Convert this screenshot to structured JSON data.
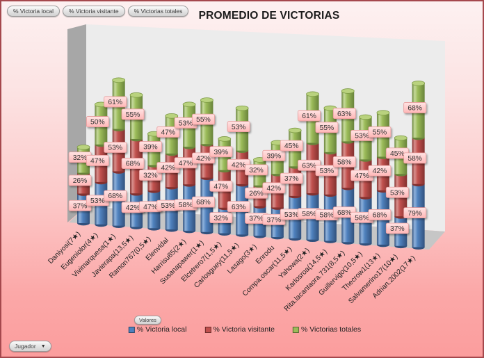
{
  "header": {
    "filter_buttons": [
      {
        "label": "% Victoria local"
      },
      {
        "label": "% Victoria visitante"
      },
      {
        "label": "% Victorias totales"
      }
    ],
    "title": "PROMEDIO DE VICTORIAS"
  },
  "footer": {
    "valores_button": "Valores",
    "jugador_dropdown": "Jugador",
    "dropdown_arrow": "▼"
  },
  "chart_data": {
    "type": "bar",
    "variant": "3d-stacked-cylinders",
    "title": "PROMEDIO DE VICTORIAS",
    "value_suffix": "%",
    "data_labels": true,
    "legend_position": "bottom",
    "axes_visible": false,
    "categories": [
      "Daniyosi(7★)",
      "Eugeniolor(4★)",
      "Vivimarquesa(1★)",
      "Javierapa(13,5★)",
      "Ramon767(0,5★)",
      "Elenvidal",
      "Harrisu85(2★)",
      "Susanapawer(1★)",
      "Elcetrero7(1,5★)",
      "Carlosguey(11,5★)",
      "Lasago(3★)",
      "Enrodu",
      "Compa.oscar(11,5★)",
      "Yahowa(2★)",
      "Karlosroa(14,5★)",
      "Rita.lacantaora.731(8,5★)",
      "Guillervigo(10,5★)",
      "Thecrow1(13★)",
      "Salvamerino17(10★)",
      "Adrian.2002(17★)"
    ],
    "series": [
      {
        "name": "% Victoria local",
        "color": "#4F81BD",
        "dark": "#31517D",
        "light": "#8FB2DC",
        "values": [
          37,
          53,
          68,
          42,
          47,
          53,
          58,
          68,
          32,
          63,
          37,
          37,
          53,
          58,
          58,
          68,
          58,
          68,
          37,
          79
        ]
      },
      {
        "name": "% Victoria visitante",
        "color": "#C0504D",
        "dark": "#83312F",
        "light": "#D9908D",
        "values": [
          26,
          47,
          53,
          68,
          32,
          42,
          47,
          42,
          47,
          42,
          26,
          42,
          37,
          63,
          53,
          58,
          47,
          42,
          53,
          58
        ]
      },
      {
        "name": "% Victorias totales",
        "color": "#9BBB59",
        "dark": "#68833A",
        "light": "#C6DA9B",
        "cap": "#B9D27E",
        "cap_rim": "#7C9A44",
        "values": [
          32,
          50,
          61,
          55,
          39,
          47,
          53,
          55,
          39,
          53,
          32,
          39,
          45,
          61,
          55,
          63,
          53,
          55,
          45,
          68
        ]
      }
    ]
  },
  "scene": {
    "wall": "#ECECEC",
    "side_wall": "#A7A7A7",
    "floor": "#C6C6C6",
    "label_bg_top": "#FFE4E4",
    "label_bg_bottom": "#FFB7B7",
    "label_border": "#E89B9B",
    "label_text": "#333333",
    "category_text": "#222222",
    "border": "#A5484D"
  }
}
